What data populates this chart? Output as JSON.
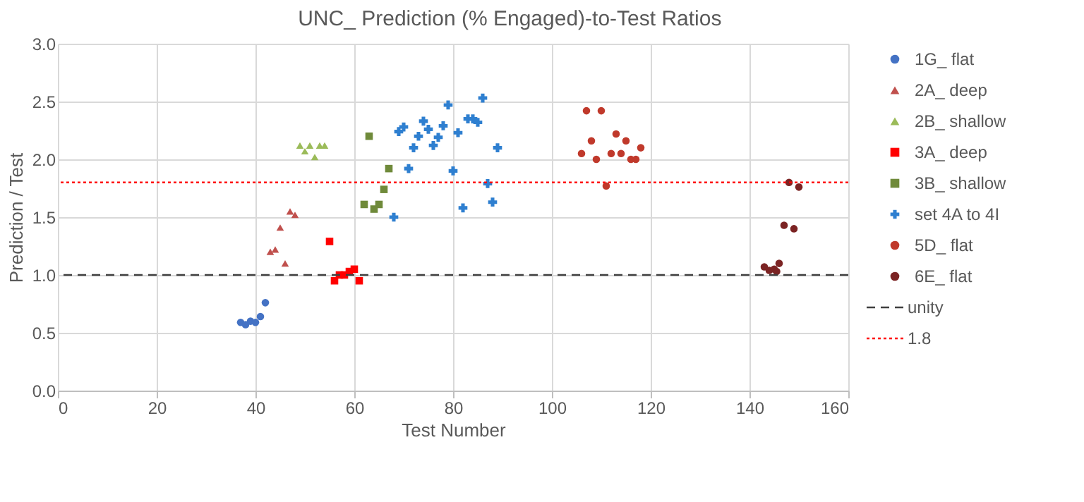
{
  "chart_data": {
    "type": "scatter",
    "title": "UNC_  Prediction (% Engaged)-to-Test Ratios",
    "xlabel": "Test Number",
    "ylabel": "Prediction / Test",
    "xlim": [
      0,
      160
    ],
    "xticks": [
      0,
      20,
      40,
      60,
      80,
      100,
      120,
      140,
      160
    ],
    "ylim": [
      0,
      3
    ],
    "yticks": [
      {
        "value": 0,
        "label": "0.0"
      },
      {
        "value": 0.5,
        "label": "0.5"
      },
      {
        "value": 1,
        "label": "1.0"
      },
      {
        "value": 1.5,
        "label": "1.5"
      },
      {
        "value": 2,
        "label": "2.0"
      },
      {
        "value": 2.5,
        "label": "2.5"
      },
      {
        "value": 3,
        "label": "3.0"
      }
    ],
    "grid": true,
    "legend": "right",
    "series": [
      {
        "name": "1G_ flat",
        "color": "#4472c4",
        "marker": "circle",
        "x": [
          37,
          38,
          39,
          40,
          41,
          42
        ],
        "values": [
          0.59,
          0.57,
          0.6,
          0.59,
          0.64,
          0.76
        ]
      },
      {
        "name": "2A_ deep",
        "color": "#c0504d",
        "marker": "triangle",
        "x": [
          43,
          44,
          45,
          46,
          47,
          48
        ],
        "values": [
          1.2,
          1.22,
          1.41,
          1.1,
          1.55,
          1.52
        ]
      },
      {
        "name": "2B_ shallow",
        "color": "#9bbb59",
        "marker": "triangle",
        "x": [
          49,
          50,
          51,
          52,
          53,
          54
        ],
        "values": [
          2.12,
          2.07,
          2.12,
          2.02,
          2.12,
          2.12
        ]
      },
      {
        "name": "3A_ deep",
        "color": "#ff0000",
        "marker": "square",
        "x": [
          55,
          56,
          57,
          58,
          59,
          60,
          61
        ],
        "values": [
          1.29,
          0.95,
          1.0,
          1.0,
          1.03,
          1.05,
          0.95
        ]
      },
      {
        "name": "3B_ shallow",
        "color": "#6f8a3a",
        "marker": "square",
        "x": [
          62,
          63,
          64,
          65,
          66,
          67
        ],
        "values": [
          1.61,
          2.2,
          1.57,
          1.61,
          1.74,
          1.92
        ]
      },
      {
        "name": "set 4A to 4I",
        "color": "#2e7fd0",
        "marker": "cross",
        "x": [
          68,
          69,
          70,
          71,
          72,
          73,
          74,
          75,
          76,
          77,
          78,
          79,
          80,
          81,
          82,
          83,
          84,
          85,
          86,
          87,
          88,
          89
        ],
        "values": [
          1.5,
          2.24,
          2.28,
          1.92,
          2.1,
          2.2,
          2.33,
          2.26,
          2.12,
          2.19,
          2.29,
          2.47,
          1.9,
          2.23,
          1.58,
          2.35,
          2.35,
          2.32,
          2.53,
          1.79,
          1.63,
          2.1
        ]
      },
      {
        "name": "5D_ flat",
        "color": "#c0392b",
        "marker": "circle",
        "x": [
          106,
          107,
          108,
          109,
          110,
          111,
          112,
          113,
          114,
          115,
          116,
          117,
          118
        ],
        "values": [
          2.05,
          2.42,
          2.16,
          2.0,
          2.42,
          1.77,
          2.05,
          2.22,
          2.05,
          2.16,
          2.0,
          2.0,
          2.1
        ]
      },
      {
        "name": "6E_ flat",
        "color": "#7b2323",
        "marker": "circle",
        "x": [
          143,
          144,
          145,
          145.5,
          146,
          147,
          148,
          149,
          150
        ],
        "values": [
          1.07,
          1.04,
          1.05,
          1.03,
          1.1,
          1.43,
          1.8,
          1.4,
          1.76
        ]
      }
    ],
    "ref_lines": [
      {
        "axis": "y",
        "value": 1.0,
        "label": "unity",
        "color": "#404040",
        "line_style": "dashed"
      },
      {
        "axis": "y",
        "value": 1.8,
        "label": "1.8",
        "color": "#ff0000",
        "line_style": "dotted"
      }
    ]
  }
}
